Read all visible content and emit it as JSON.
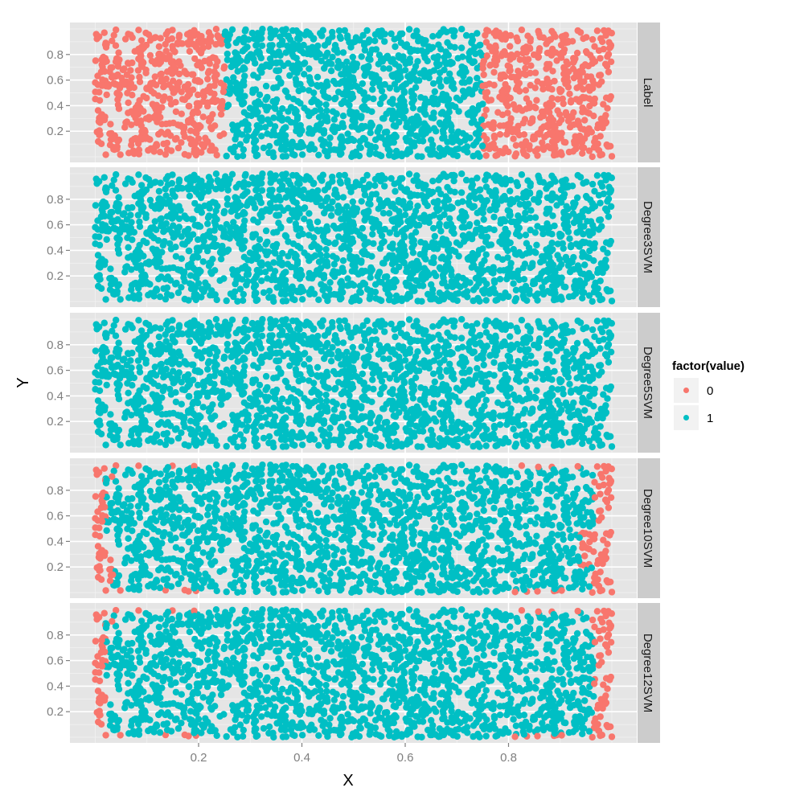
{
  "chart_data": {
    "type": "scatter",
    "title": "",
    "xlabel": "X",
    "ylabel": "Y",
    "xlim": [
      -0.05,
      1.05
    ],
    "ylim": [
      -0.03,
      1.03
    ],
    "x_ticks": [
      0.2,
      0.4,
      0.6,
      0.8
    ],
    "x_tick_labels": [
      "0.2",
      "0.4",
      "0.6",
      "0.8"
    ],
    "y_ticks": [
      0.2,
      0.4,
      0.6,
      0.8
    ],
    "y_tick_labels": [
      "0.2",
      "0.4",
      "0.6",
      "0.8"
    ],
    "grid": true,
    "facet": "rows",
    "panels": [
      {
        "label": "Label",
        "description": "value 0 where x < 0.25 or x > 0.75, else 1"
      },
      {
        "label": "Degree3SVM",
        "description": "all points predicted 1"
      },
      {
        "label": "Degree5SVM",
        "description": "all points predicted 1"
      },
      {
        "label": "Degree10SVM",
        "description": "predicted 0 only near the left/right edges (x < ~0.02 or x > ~0.97) and some near top/bottom corners"
      },
      {
        "label": "Degree12SVM",
        "description": "predicted 0 only near the left/right edges and top/bottom corners"
      }
    ],
    "n_points_per_panel": 2000,
    "x_range_data": [
      0,
      1
    ],
    "y_range_data": [
      0,
      1
    ],
    "legend": {
      "title": "factor(value)",
      "position": "right",
      "entries": [
        {
          "label": "0",
          "color": "#F8766D"
        },
        {
          "label": "1",
          "color": "#00BFC4"
        }
      ]
    }
  },
  "colors": {
    "class0": "#F8766D",
    "class1": "#00BFC4",
    "panel_bg": "#E5E5E5",
    "strip_bg": "#CCCCCC",
    "grid_major": "#FFFFFF",
    "grid_minor": "#F2F2F2"
  }
}
